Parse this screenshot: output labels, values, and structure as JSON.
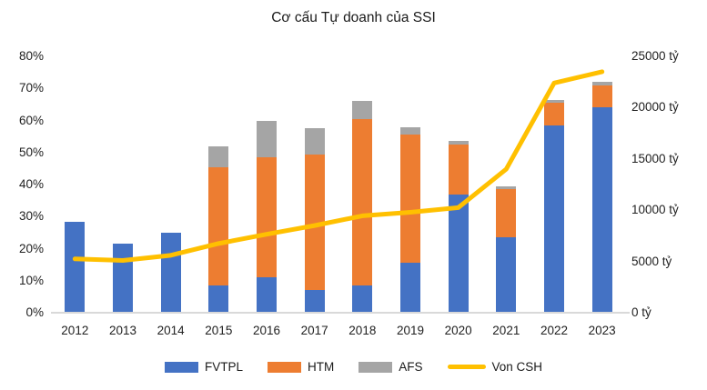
{
  "title": "Cơ cấu Tự doanh của SSI",
  "colors": {
    "fvtpl": "#4472C4",
    "htm": "#ED7D31",
    "afs": "#A5A5A5",
    "von_csh": "#FFC000",
    "axis_line": "#D9D9D9",
    "text": "#212121"
  },
  "axes": {
    "left_ticks": [
      {
        "value": 0,
        "label": "0%"
      },
      {
        "value": 10,
        "label": "10%"
      },
      {
        "value": 20,
        "label": "20%"
      },
      {
        "value": 30,
        "label": "30%"
      },
      {
        "value": 40,
        "label": "40%"
      },
      {
        "value": 50,
        "label": "50%"
      },
      {
        "value": 60,
        "label": "60%"
      },
      {
        "value": 70,
        "label": "70%"
      },
      {
        "value": 80,
        "label": "80%"
      }
    ],
    "right_ticks": [
      {
        "value": 0,
        "label": "0 tỷ"
      },
      {
        "value": 5000,
        "label": "5000 tỷ"
      },
      {
        "value": 10000,
        "label": "10000 tỷ"
      },
      {
        "value": 15000,
        "label": "15000 tỷ"
      },
      {
        "value": 20000,
        "label": "20000 tỷ"
      },
      {
        "value": 25000,
        "label": "25000 tỷ"
      }
    ],
    "x_labels": [
      "2012",
      "2013",
      "2014",
      "2015",
      "2016",
      "2017",
      "2018",
      "2019",
      "2020",
      "2021",
      "2022",
      "2023"
    ]
  },
  "legend": [
    {
      "label": "FVTPL",
      "swatch": "box",
      "color_key": "fvtpl"
    },
    {
      "label": "HTM",
      "swatch": "box",
      "color_key": "htm"
    },
    {
      "label": "AFS",
      "swatch": "box",
      "color_key": "afs"
    },
    {
      "label": "Von CSH",
      "swatch": "line",
      "color_key": "von_csh"
    }
  ],
  "chart_data": {
    "type": "bar",
    "subtype": "stacked-bars-with-line",
    "title": "Cơ cấu Tự doanh của SSI",
    "grid": false,
    "legend_position": "bottom",
    "categories": [
      "2012",
      "2013",
      "2014",
      "2015",
      "2016",
      "2017",
      "2018",
      "2019",
      "2020",
      "2021",
      "2022",
      "2023"
    ],
    "left_axis": {
      "min": 0,
      "max": 80,
      "unit": "%"
    },
    "right_axis": {
      "min": 0,
      "max": 25000,
      "unit": "tỷ"
    },
    "series": [
      {
        "name": "FVTPL",
        "type": "bar-stack",
        "axis": "left",
        "unit": "%",
        "color_key": "fvtpl",
        "values": [
          28.5,
          21.5,
          25,
          8.5,
          11,
          7,
          8.5,
          15.5,
          37,
          23.5,
          58.5,
          64
        ]
      },
      {
        "name": "HTM",
        "type": "bar-stack",
        "axis": "left",
        "unit": "%",
        "color_key": "htm",
        "values": [
          0,
          0,
          0,
          37,
          37.5,
          42.5,
          52,
          40,
          15.5,
          15,
          7,
          7
        ]
      },
      {
        "name": "AFS",
        "type": "bar-stack",
        "axis": "left",
        "unit": "%",
        "color_key": "afs",
        "values": [
          0,
          0,
          0,
          6.5,
          11.5,
          8,
          5.5,
          2.5,
          1,
          1,
          1,
          1
        ]
      }
    ],
    "line_series": {
      "name": "Von CSH",
      "type": "line",
      "axis": "right",
      "unit": "tỷ",
      "color_key": "von_csh",
      "values": [
        5250,
        5100,
        5600,
        6750,
        7650,
        8500,
        9450,
        9800,
        10250,
        14000,
        22400,
        23500
      ]
    }
  }
}
